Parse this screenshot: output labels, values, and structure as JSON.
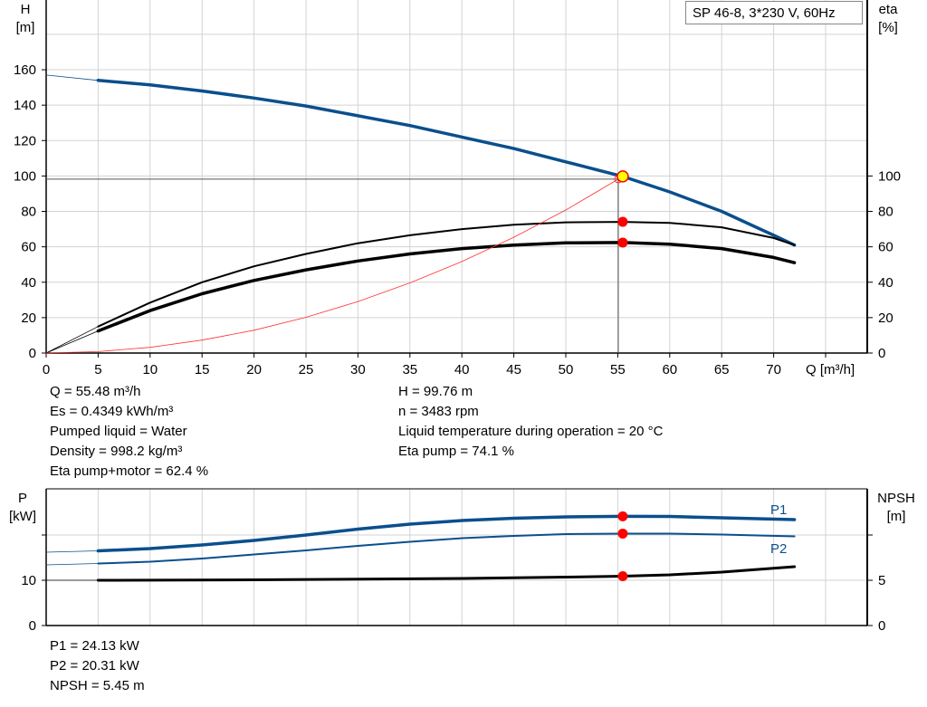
{
  "chart_data": [
    {
      "type": "line",
      "title": "SP 46-8, 3*230 V, 60Hz",
      "xlabel": "Q [m³/h]",
      "ylabel_left": {
        "name": "H",
        "unit": "[m]"
      },
      "ylabel_right": {
        "name": "eta",
        "unit": "[%]"
      },
      "xlim": [
        0,
        79
      ],
      "ylim_left": [
        0,
        200
      ],
      "ylim_right": [
        0,
        200
      ],
      "x_ticks": [
        0,
        5,
        10,
        15,
        20,
        25,
        30,
        35,
        40,
        45,
        50,
        55,
        60,
        65,
        70
      ],
      "y_ticks_left": [
        0,
        20,
        40,
        60,
        80,
        100,
        120,
        140,
        160
      ],
      "y_ticks_right": [
        0,
        20,
        40,
        60,
        80,
        100
      ],
      "grid": true,
      "series": [
        {
          "key": "H",
          "color": "#0a4f8c",
          "x": [
            5,
            10,
            15,
            20,
            25,
            30,
            35,
            40,
            45,
            50,
            55.48,
            60,
            65,
            70,
            72
          ],
          "values": [
            154,
            151.5,
            148,
            144,
            139.5,
            134,
            128.5,
            122,
            115.5,
            108,
            99.76,
            91,
            80,
            66.5,
            61
          ],
          "extension": {
            "x": [
              0,
              5
            ],
            "values": [
              157,
              154
            ]
          }
        },
        {
          "key": "eta_pump",
          "color": "#000000",
          "x": [
            5,
            10,
            15,
            20,
            25,
            30,
            35,
            40,
            45,
            50,
            55.48,
            60,
            65,
            70,
            72
          ],
          "values": [
            15,
            28.5,
            40,
            49,
            56,
            62,
            66.5,
            70,
            72.5,
            73.8,
            74.1,
            73.5,
            71,
            65,
            61
          ],
          "extension": {
            "x": [
              0,
              5
            ],
            "values": [
              0,
              15
            ]
          }
        },
        {
          "key": "eta_pump_motor",
          "color": "#000000",
          "x": [
            5,
            10,
            15,
            20,
            25,
            30,
            35,
            40,
            45,
            50,
            55.48,
            60,
            65,
            70,
            72
          ],
          "values": [
            12.5,
            24,
            33.5,
            41,
            47,
            52,
            56,
            59,
            61,
            62.2,
            62.4,
            61.5,
            59,
            54,
            51
          ],
          "extension": {
            "x": [
              0,
              5
            ],
            "values": [
              0,
              12.5
            ]
          }
        },
        {
          "key": "system_curve",
          "color": "#ff3030",
          "x": [
            0,
            5,
            10,
            15,
            20,
            25,
            30,
            35,
            40,
            45,
            50,
            55.05
          ],
          "values": [
            0,
            0.8,
            3.2,
            7.3,
            12.9,
            20.2,
            29.1,
            39.6,
            51.7,
            65.4,
            80.8,
            98.2
          ]
        }
      ],
      "operating_point": {
        "Q": 55.48,
        "H": 99.76,
        "eta_pump": 74.1,
        "eta_pump_motor": 62.4
      },
      "crosshair": {
        "Q": 55.05,
        "H": 98.2
      }
    },
    {
      "type": "line",
      "ylabel_left": {
        "name": "P",
        "unit": "[kW]"
      },
      "ylabel_right": {
        "name": "NPSH",
        "unit": "[m]"
      },
      "xlim": [
        0,
        79
      ],
      "ylim_left": [
        0,
        30
      ],
      "ylim_right": [
        0,
        15
      ],
      "x_ticks": [
        0,
        5,
        10,
        15,
        20,
        25,
        30,
        35,
        40,
        45,
        50,
        55,
        60,
        65,
        70,
        75
      ],
      "y_ticks_left": [
        {
          "v": 0,
          "label": "0"
        },
        {
          "v": 10,
          "label": "10"
        },
        {
          "v": 20,
          "label": ""
        }
      ],
      "y_ticks_right": [
        {
          "v": 0,
          "label": "0"
        },
        {
          "v": 5,
          "label": "5"
        },
        {
          "v": 10,
          "label": ""
        }
      ],
      "grid": true,
      "series": [
        {
          "key": "P1",
          "name": "P1",
          "color": "#0a4f8c",
          "x": [
            5,
            10,
            15,
            20,
            25,
            30,
            35,
            40,
            45,
            50,
            55.48,
            60,
            65,
            72
          ],
          "values": [
            16.5,
            17,
            17.8,
            18.8,
            20,
            21.3,
            22.4,
            23.2,
            23.7,
            24.0,
            24.13,
            24.1,
            23.8,
            23.4
          ],
          "extension": {
            "x": [
              0,
              5
            ],
            "values": [
              16.2,
              16.5
            ]
          }
        },
        {
          "key": "P2",
          "name": "P2",
          "color": "#0a4f8c",
          "x": [
            5,
            10,
            15,
            20,
            25,
            30,
            35,
            40,
            45,
            50,
            55.48,
            60,
            65,
            72
          ],
          "values": [
            13.7,
            14.1,
            14.8,
            15.7,
            16.6,
            17.6,
            18.5,
            19.3,
            19.8,
            20.2,
            20.31,
            20.3,
            20.1,
            19.7
          ],
          "extension": {
            "x": [
              0,
              5
            ],
            "values": [
              13.4,
              13.7
            ]
          }
        },
        {
          "key": "NPSH",
          "color": "#000000",
          "axis": "right",
          "x": [
            5,
            20,
            40,
            50,
            55.48,
            60,
            65,
            72
          ],
          "values": [
            5.0,
            5.05,
            5.2,
            5.35,
            5.45,
            5.6,
            5.9,
            6.5
          ],
          "extension": {
            "x": [
              0,
              5
            ],
            "values": [
              5.0,
              5.0
            ]
          }
        }
      ],
      "operating_point": {
        "Q": 55.48,
        "P1": 24.13,
        "P2": 20.31,
        "NPSH": 5.45
      }
    }
  ],
  "info_top": {
    "left": [
      "Q = 55.48 m³/h",
      "Es = 0.4349 kWh/m³",
      "Pumped liquid = Water",
      "Density = 998.2 kg/m³",
      "Eta pump+motor = 62.4 %"
    ],
    "right": [
      "H = 99.76 m",
      "n = 3483 rpm",
      "Liquid temperature during operation = 20 °C",
      "Eta pump = 74.1 %"
    ]
  },
  "info_bottom": [
    "P1 = 24.13 kW",
    "P2 = 20.31 kW",
    "NPSH = 5.45 m"
  ],
  "colors": {
    "curve_blue": "#0a4f8c",
    "marker_red": "#ff0000",
    "operating_point_fill": "#ffff00",
    "grid": "#d3d3d3"
  }
}
